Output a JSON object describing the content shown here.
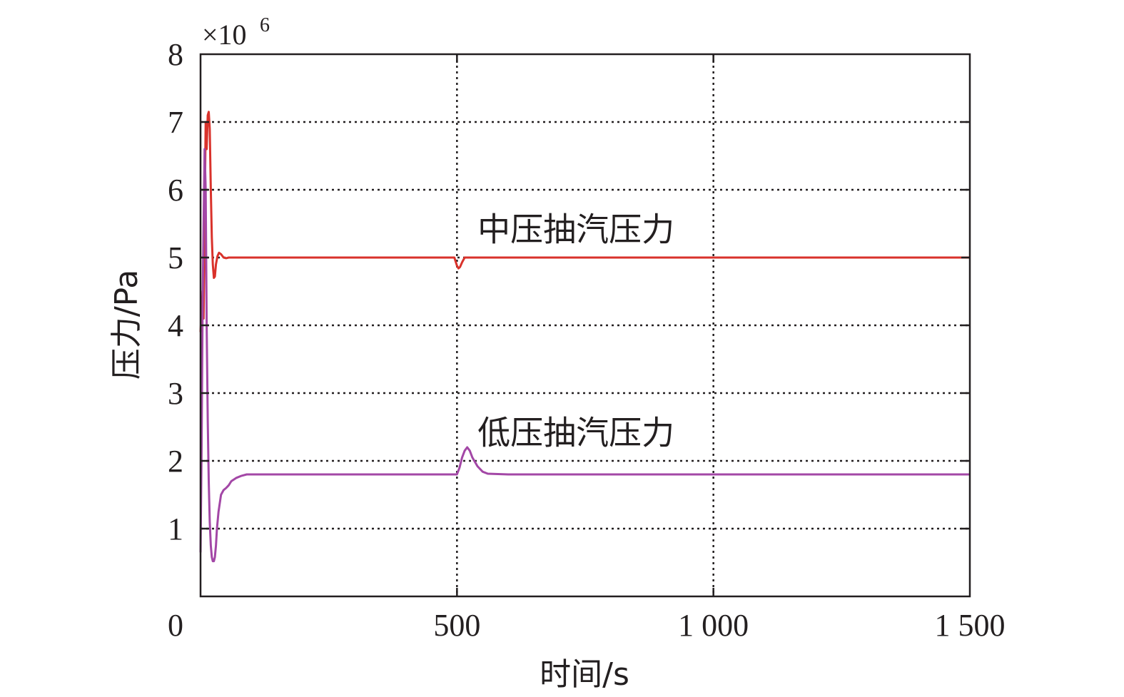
{
  "chart_data": {
    "type": "line",
    "xlabel": "时间/s",
    "ylabel": "压力/Pa",
    "y_multiplier": "×10",
    "y_multiplier_exp": "6",
    "xlim": [
      0,
      1500
    ],
    "ylim": [
      0,
      8
    ],
    "x_ticks": [
      0,
      500,
      1000,
      1500
    ],
    "x_tick_labels": [
      "0",
      "500",
      "1 000",
      "1 500"
    ],
    "y_ticks": [
      1,
      2,
      3,
      4,
      5,
      6,
      7,
      8
    ],
    "y_tick_labels": [
      "1",
      "2",
      "3",
      "4",
      "5",
      "6",
      "7",
      "8"
    ],
    "grid": true,
    "series": [
      {
        "name": "中压抽汽压力",
        "color": "#d9322b",
        "x": [
          0,
          2,
          4,
          6,
          8,
          10,
          12,
          14,
          16,
          18,
          20,
          22,
          24,
          26,
          28,
          30,
          33,
          36,
          40,
          45,
          50,
          55,
          60,
          65,
          70,
          80,
          100,
          200,
          300,
          400,
          495,
          500,
          503,
          506,
          510,
          515,
          520,
          530,
          600,
          700,
          800,
          900,
          1000,
          1100,
          1200,
          1300,
          1400,
          1500
        ],
        "y": [
          3.9,
          4.2,
          4.5,
          4.1,
          5.5,
          7.0,
          6.6,
          7.1,
          7.15,
          6.9,
          6.0,
          5.3,
          4.9,
          4.7,
          4.72,
          4.9,
          5.02,
          5.07,
          5.05,
          5.0,
          4.99,
          5.0,
          5.0,
          5.0,
          5.0,
          5.0,
          5.0,
          5.0,
          5.0,
          5.0,
          5.0,
          4.88,
          4.84,
          4.86,
          4.93,
          5.0,
          5.0,
          5.0,
          5.0,
          5.0,
          5.0,
          5.0,
          5.0,
          5.0,
          5.0,
          5.0,
          5.0,
          5.0
        ]
      },
      {
        "name": "低压抽汽压力",
        "color": "#a347a6",
        "x": [
          0,
          2,
          4,
          6,
          8,
          10,
          12,
          14,
          16,
          18,
          20,
          22,
          24,
          26,
          28,
          30,
          32,
          35,
          40,
          45,
          50,
          55,
          60,
          70,
          80,
          90,
          100,
          120,
          150,
          200,
          300,
          400,
          495,
          500,
          505,
          510,
          515,
          520,
          525,
          530,
          540,
          550,
          560,
          600,
          700,
          800,
          900,
          1000,
          1100,
          1200,
          1300,
          1400,
          1500
        ],
        "y": [
          0.65,
          2.1,
          4.3,
          5.5,
          6.6,
          6.0,
          4.0,
          2.6,
          1.7,
          1.1,
          0.75,
          0.58,
          0.52,
          0.52,
          0.58,
          0.75,
          1.0,
          1.25,
          1.5,
          1.57,
          1.6,
          1.64,
          1.7,
          1.75,
          1.78,
          1.8,
          1.8,
          1.8,
          1.8,
          1.8,
          1.8,
          1.8,
          1.8,
          1.8,
          1.9,
          2.05,
          2.15,
          2.2,
          2.15,
          2.05,
          1.92,
          1.84,
          1.81,
          1.8,
          1.8,
          1.8,
          1.8,
          1.8,
          1.8,
          1.8,
          1.8,
          1.8,
          1.8
        ]
      }
    ],
    "annotations": [
      {
        "text": "中压抽汽压力",
        "x": 540,
        "y": 5.25
      },
      {
        "text": "低压抽汽压力",
        "x": 540,
        "y": 2.25
      }
    ]
  }
}
